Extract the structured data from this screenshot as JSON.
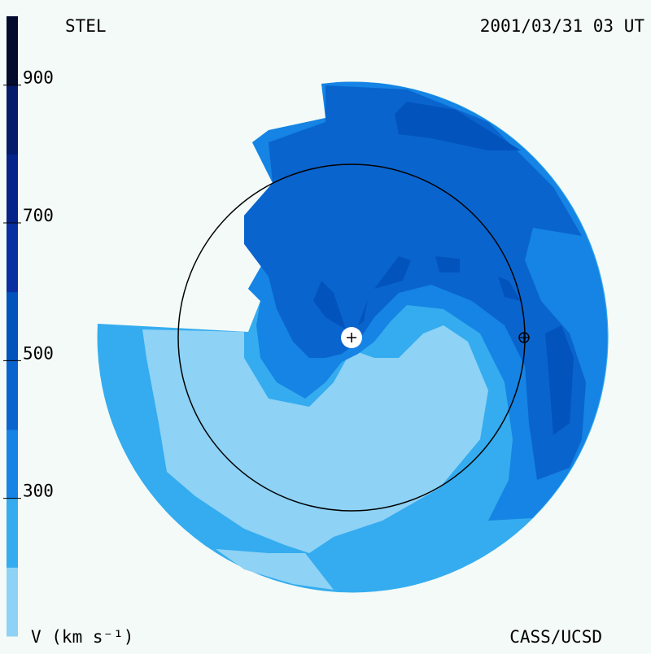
{
  "chart_data": {
    "type": "velocity-map",
    "title": "STEL",
    "subtitle": "2001/03/31 03 UT",
    "credit": "CASS/UCSD",
    "colorbar_label": "V (km s⁻¹)",
    "ylim": [
      100,
      1000
    ],
    "yticks": [
      300,
      500,
      700,
      900
    ],
    "levels": [
      100,
      200,
      300,
      400,
      500,
      600,
      700,
      800,
      900,
      1000
    ],
    "colors": [
      "#8ed2f5",
      "#34acef",
      "#1584e4",
      "#0a64cd",
      "#0353bd",
      "#0a2fa0",
      "#06238a",
      "#041a6a",
      "#020a2e"
    ]
  }
}
